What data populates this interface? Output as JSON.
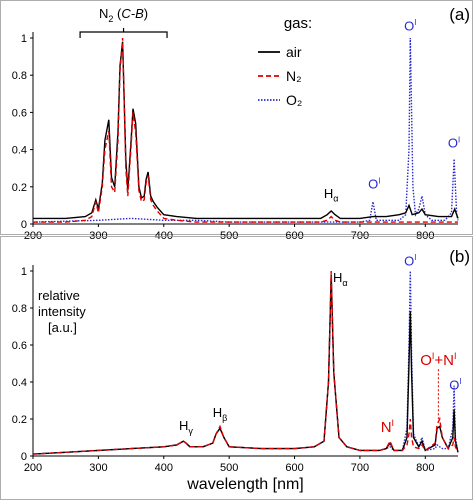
{
  "colors": {
    "air": "#000000",
    "n2": "#e00000",
    "o2": "#2a2ad0",
    "annotation_red": "#e00000",
    "annotation_blue": "#2a2ad0"
  },
  "chart_data": [
    {
      "type": "line",
      "panel_label": "(a)",
      "xlim": [
        200,
        850
      ],
      "ylim": [
        0,
        1
      ],
      "xticks": [
        200,
        300,
        400,
        500,
        600,
        700,
        800
      ],
      "yticks": [
        0,
        0.2,
        0.4,
        0.6,
        0.8,
        1
      ],
      "xlabel": "",
      "ylabel": "",
      "legend": {
        "title": "gas:",
        "position": "top-right"
      },
      "series": [
        {
          "name": "air",
          "style": "solid",
          "color_key": "air",
          "x": [
            200,
            250,
            280,
            290,
            296,
            300,
            306,
            310,
            316,
            320,
            325,
            330,
            333,
            337,
            342,
            345,
            350,
            353,
            357,
            362,
            366,
            370,
            373,
            376,
            380,
            384,
            390,
            400,
            420,
            450,
            500,
            550,
            600,
            640,
            650,
            656,
            662,
            670,
            700,
            720,
            740,
            760,
            770,
            775,
            777,
            780,
            790,
            795,
            800,
            820,
            840,
            845,
            850
          ],
          "y": [
            0.03,
            0.03,
            0.04,
            0.06,
            0.13,
            0.08,
            0.22,
            0.45,
            0.56,
            0.25,
            0.2,
            0.5,
            0.85,
            0.98,
            0.35,
            0.18,
            0.45,
            0.62,
            0.54,
            0.2,
            0.14,
            0.15,
            0.24,
            0.28,
            0.15,
            0.12,
            0.09,
            0.05,
            0.04,
            0.03,
            0.03,
            0.03,
            0.03,
            0.03,
            0.05,
            0.07,
            0.05,
            0.03,
            0.03,
            0.04,
            0.04,
            0.05,
            0.06,
            0.1,
            0.08,
            0.05,
            0.06,
            0.08,
            0.05,
            0.04,
            0.04,
            0.08,
            0.03
          ]
        },
        {
          "name": "N₂",
          "style": "dashed",
          "color_key": "n2",
          "x": [
            200,
            250,
            280,
            290,
            296,
            300,
            306,
            310,
            316,
            320,
            325,
            330,
            333,
            337,
            342,
            345,
            350,
            353,
            357,
            362,
            366,
            370,
            373,
            376,
            380,
            384,
            390,
            400,
            420,
            450,
            500,
            550,
            600,
            640,
            650,
            656,
            662,
            670,
            700,
            750,
            800,
            850
          ],
          "y": [
            0.01,
            0.01,
            0.02,
            0.04,
            0.12,
            0.06,
            0.2,
            0.4,
            0.5,
            0.2,
            0.17,
            0.45,
            0.82,
            1.0,
            0.3,
            0.15,
            0.42,
            0.6,
            0.49,
            0.18,
            0.12,
            0.13,
            0.22,
            0.26,
            0.13,
            0.1,
            0.07,
            0.03,
            0.02,
            0.01,
            0.01,
            0.01,
            0.01,
            0.01,
            0.02,
            0.04,
            0.02,
            0.01,
            0.01,
            0.01,
            0.01,
            0.01
          ]
        },
        {
          "name": "O₂",
          "style": "dotted",
          "color_key": "o2",
          "x": [
            200,
            300,
            350,
            400,
            450,
            500,
            600,
            700,
            715,
            720,
            725,
            760,
            770,
            775,
            777,
            779,
            781,
            785,
            790,
            795,
            800,
            810,
            830,
            840,
            844,
            848,
            850
          ],
          "y": [
            0.01,
            0.02,
            0.03,
            0.02,
            0.02,
            0.01,
            0.01,
            0.01,
            0.02,
            0.12,
            0.02,
            0.02,
            0.05,
            0.4,
            1.0,
            0.6,
            0.2,
            0.05,
            0.08,
            0.15,
            0.05,
            0.02,
            0.02,
            0.06,
            0.35,
            0.05,
            0.02
          ]
        }
      ],
      "annotations": [
        {
          "text": "N₂ (C-B)",
          "x_range": [
            272,
            405
          ],
          "y": 1.05
        },
        {
          "text": "Hα",
          "x": 656,
          "y": 0.13
        },
        {
          "text": "OI",
          "x": 722,
          "y": 0.18
        },
        {
          "text": "OI",
          "x": 777,
          "y": 1.03
        },
        {
          "text": "OI",
          "x": 844,
          "y": 0.4
        }
      ]
    },
    {
      "type": "line",
      "panel_label": "(b)",
      "xlim": [
        200,
        850
      ],
      "ylim": [
        0,
        1
      ],
      "xticks": [
        200,
        300,
        400,
        500,
        600,
        700,
        800
      ],
      "yticks": [
        0,
        0.2,
        0.4,
        0.6,
        0.8,
        1
      ],
      "xlabel": "wavelength [nm]",
      "ylabel": "relative intensity [a.u.]",
      "series": [
        {
          "name": "air",
          "style": "solid",
          "color_key": "air",
          "x": [
            200,
            250,
            300,
            350,
            400,
            420,
            430,
            434,
            440,
            460,
            475,
            480,
            486,
            492,
            500,
            550,
            600,
            630,
            645,
            652,
            656,
            660,
            668,
            680,
            700,
            730,
            740,
            746,
            752,
            765,
            772,
            775,
            777,
            779,
            782,
            790,
            795,
            800,
            815,
            818,
            822,
            826,
            835,
            842,
            844,
            846,
            850
          ],
          "y": [
            0.01,
            0.02,
            0.03,
            0.04,
            0.05,
            0.06,
            0.08,
            0.07,
            0.05,
            0.05,
            0.07,
            0.12,
            0.15,
            0.1,
            0.05,
            0.04,
            0.04,
            0.05,
            0.08,
            0.4,
            0.98,
            0.45,
            0.1,
            0.05,
            0.03,
            0.03,
            0.04,
            0.07,
            0.03,
            0.03,
            0.1,
            0.5,
            0.78,
            0.45,
            0.1,
            0.05,
            0.08,
            0.03,
            0.06,
            0.15,
            0.16,
            0.1,
            0.04,
            0.1,
            0.25,
            0.08,
            0.02
          ]
        },
        {
          "name": "N₂",
          "style": "dashed",
          "color_key": "n2",
          "x": [
            200,
            250,
            300,
            350,
            400,
            420,
            430,
            434,
            440,
            460,
            475,
            480,
            486,
            492,
            500,
            550,
            600,
            630,
            645,
            652,
            656,
            660,
            668,
            680,
            700,
            730,
            740,
            746,
            752,
            765,
            772,
            775,
            777,
            779,
            782,
            790,
            795,
            800,
            815,
            818,
            822,
            826,
            835,
            842,
            844,
            846,
            850
          ],
          "y": [
            0.01,
            0.02,
            0.03,
            0.04,
            0.05,
            0.06,
            0.08,
            0.07,
            0.05,
            0.05,
            0.07,
            0.12,
            0.16,
            0.1,
            0.05,
            0.04,
            0.04,
            0.05,
            0.08,
            0.4,
            1.0,
            0.45,
            0.1,
            0.05,
            0.03,
            0.03,
            0.04,
            0.08,
            0.03,
            0.03,
            0.06,
            0.12,
            0.2,
            0.1,
            0.05,
            0.04,
            0.06,
            0.03,
            0.07,
            0.17,
            0.2,
            0.1,
            0.04,
            0.06,
            0.1,
            0.05,
            0.02
          ]
        },
        {
          "name": "O₂",
          "style": "dotted",
          "color_key": "o2",
          "x": [
            200,
            250,
            300,
            350,
            400,
            420,
            430,
            434,
            440,
            460,
            475,
            480,
            486,
            492,
            500,
            550,
            600,
            630,
            645,
            652,
            656,
            660,
            668,
            680,
            700,
            730,
            740,
            746,
            752,
            765,
            772,
            775,
            777,
            779,
            782,
            790,
            795,
            800,
            815,
            818,
            822,
            826,
            835,
            842,
            844,
            846,
            850
          ],
          "y": [
            0.01,
            0.02,
            0.03,
            0.04,
            0.05,
            0.06,
            0.08,
            0.07,
            0.05,
            0.05,
            0.07,
            0.12,
            0.15,
            0.1,
            0.05,
            0.04,
            0.04,
            0.05,
            0.08,
            0.4,
            0.96,
            0.45,
            0.1,
            0.05,
            0.03,
            0.03,
            0.04,
            0.05,
            0.03,
            0.03,
            0.15,
            0.6,
            1.0,
            0.55,
            0.12,
            0.05,
            0.1,
            0.03,
            0.04,
            0.06,
            0.05,
            0.04,
            0.04,
            0.15,
            0.38,
            0.1,
            0.02
          ]
        }
      ],
      "annotations": [
        {
          "text": "Hγ",
          "x": 434,
          "y": 0.13
        },
        {
          "text": "Hβ",
          "x": 486,
          "y": 0.2
        },
        {
          "text": "Hα",
          "x": 670,
          "y": 0.93
        },
        {
          "text": "NI",
          "x": 742,
          "y": 0.12
        },
        {
          "text": "OI",
          "x": 777,
          "y": 1.02
        },
        {
          "text": "OI+NI",
          "x": 820,
          "y": 0.48
        },
        {
          "text": "OI",
          "x": 846,
          "y": 0.35
        }
      ]
    }
  ]
}
